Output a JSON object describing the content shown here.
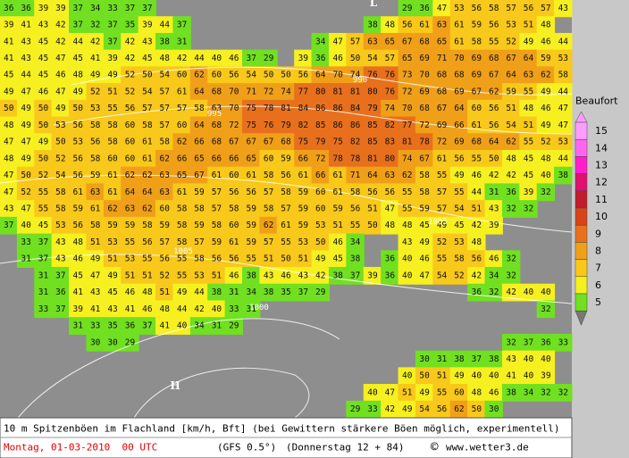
{
  "map": {
    "rows": [
      [
        36,
        36,
        39,
        39,
        37,
        34,
        33,
        37,
        37,
        null,
        null,
        null,
        null,
        null,
        null,
        null,
        null,
        null,
        null,
        null,
        null,
        null,
        null,
        29,
        36,
        47,
        53,
        56,
        58,
        57,
        56,
        57,
        43
      ],
      [
        39,
        41,
        43,
        42,
        37,
        32,
        37,
        35,
        39,
        44,
        37,
        null,
        null,
        null,
        null,
        null,
        null,
        null,
        null,
        null,
        null,
        38,
        48,
        56,
        61,
        63,
        61,
        59,
        56,
        53,
        51,
        48,
        null
      ],
      [
        41,
        43,
        45,
        42,
        44,
        42,
        37,
        42,
        43,
        38,
        31,
        null,
        null,
        null,
        null,
        null,
        null,
        null,
        34,
        47,
        57,
        63,
        65,
        67,
        68,
        65,
        61,
        58,
        55,
        52,
        49,
        46,
        44
      ],
      [
        41,
        43,
        45,
        47,
        45,
        41,
        39,
        42,
        45,
        48,
        42,
        44,
        40,
        46,
        37,
        29,
        null,
        39,
        36,
        46,
        50,
        54,
        57,
        65,
        69,
        71,
        70,
        69,
        68,
        67,
        64,
        59,
        53
      ],
      [
        45,
        44,
        45,
        46,
        48,
        49,
        49,
        52,
        50,
        54,
        60,
        62,
        60,
        56,
        54,
        50,
        50,
        56,
        64,
        70,
        74,
        76,
        76,
        73,
        70,
        68,
        68,
        69,
        67,
        64,
        63,
        62,
        58
      ],
      [
        49,
        47,
        46,
        47,
        49,
        52,
        51,
        52,
        54,
        57,
        61,
        64,
        68,
        70,
        71,
        72,
        74,
        77,
        80,
        81,
        81,
        80,
        76,
        72,
        69,
        68,
        69,
        67,
        62,
        59,
        55,
        49,
        44
      ],
      [
        50,
        49,
        50,
        49,
        50,
        53,
        55,
        56,
        57,
        57,
        57,
        58,
        63,
        70,
        75,
        78,
        81,
        84,
        86,
        86,
        84,
        79,
        74,
        70,
        68,
        67,
        64,
        60,
        56,
        51,
        48,
        46,
        47
      ],
      [
        48,
        49,
        50,
        53,
        56,
        58,
        58,
        60,
        58,
        57,
        60,
        64,
        68,
        72,
        75,
        76,
        79,
        82,
        85,
        86,
        86,
        85,
        82,
        77,
        72,
        69,
        66,
        61,
        56,
        54,
        51,
        49,
        47
      ],
      [
        47,
        47,
        49,
        50,
        53,
        56,
        58,
        60,
        61,
        58,
        62,
        66,
        68,
        67,
        67,
        67,
        68,
        75,
        79,
        75,
        82,
        85,
        83,
        81,
        78,
        72,
        69,
        68,
        64,
        62,
        55,
        52,
        53
      ],
      [
        48,
        49,
        50,
        52,
        56,
        58,
        60,
        60,
        61,
        62,
        66,
        65,
        66,
        66,
        65,
        60,
        59,
        66,
        72,
        78,
        78,
        81,
        80,
        74,
        67,
        61,
        56,
        55,
        50,
        48,
        45,
        48,
        44
      ],
      [
        47,
        50,
        52,
        54,
        56,
        59,
        61,
        62,
        62,
        63,
        65,
        67,
        61,
        60,
        61,
        58,
        56,
        61,
        66,
        61,
        71,
        64,
        63,
        62,
        58,
        55,
        49,
        46,
        42,
        42,
        45,
        40,
        38
      ],
      [
        47,
        52,
        55,
        58,
        61,
        63,
        61,
        64,
        64,
        63,
        61,
        59,
        57,
        56,
        56,
        57,
        58,
        59,
        60,
        61,
        58,
        56,
        56,
        55,
        58,
        57,
        55,
        44,
        31,
        36,
        39,
        32,
        null
      ],
      [
        43,
        47,
        55,
        58,
        59,
        61,
        62,
        63,
        62,
        60,
        58,
        58,
        57,
        58,
        59,
        58,
        57,
        59,
        60,
        59,
        56,
        51,
        47,
        55,
        59,
        57,
        54,
        51,
        43,
        32,
        32,
        null,
        null
      ],
      [
        37,
        40,
        45,
        53,
        56,
        58,
        59,
        59,
        58,
        59,
        58,
        59,
        58,
        60,
        59,
        62,
        61,
        59,
        53,
        51,
        55,
        50,
        48,
        48,
        45,
        49,
        45,
        42,
        39,
        null,
        null,
        null,
        null
      ],
      [
        null,
        33,
        37,
        43,
        48,
        51,
        53,
        55,
        56,
        57,
        58,
        57,
        59,
        61,
        59,
        57,
        55,
        53,
        50,
        46,
        34,
        null,
        null,
        43,
        49,
        52,
        53,
        48,
        null,
        null,
        null,
        null,
        null
      ],
      [
        null,
        31,
        37,
        43,
        46,
        49,
        51,
        53,
        55,
        56,
        55,
        58,
        56,
        56,
        55,
        51,
        50,
        51,
        49,
        45,
        38,
        null,
        36,
        40,
        46,
        55,
        58,
        56,
        46,
        32,
        null,
        null,
        null
      ],
      [
        null,
        null,
        31,
        37,
        45,
        47,
        49,
        51,
        51,
        52,
        55,
        53,
        51,
        46,
        38,
        43,
        46,
        43,
        42,
        38,
        37,
        39,
        36,
        40,
        47,
        54,
        52,
        42,
        34,
        32,
        null,
        null,
        null
      ],
      [
        null,
        null,
        31,
        36,
        41,
        43,
        45,
        46,
        48,
        51,
        49,
        44,
        38,
        31,
        34,
        38,
        35,
        37,
        29,
        null,
        null,
        null,
        null,
        null,
        null,
        null,
        null,
        36,
        32,
        42,
        40,
        40,
        null
      ],
      [
        null,
        null,
        33,
        37,
        39,
        41,
        43,
        41,
        46,
        48,
        44,
        42,
        40,
        33,
        31,
        null,
        null,
        null,
        null,
        null,
        null,
        null,
        null,
        null,
        null,
        null,
        null,
        null,
        null,
        null,
        null,
        32,
        null
      ],
      [
        null,
        null,
        null,
        null,
        31,
        33,
        35,
        36,
        37,
        41,
        40,
        34,
        31,
        29,
        null,
        null,
        null,
        null,
        null,
        null,
        null,
        null,
        null,
        null,
        null,
        null,
        null,
        null,
        null,
        null,
        null,
        null,
        null
      ],
      [
        null,
        null,
        null,
        null,
        null,
        30,
        30,
        29,
        null,
        null,
        null,
        null,
        null,
        null,
        null,
        null,
        null,
        null,
        null,
        null,
        null,
        null,
        null,
        null,
        null,
        null,
        null,
        null,
        null,
        32,
        37,
        36,
        33
      ],
      [
        null,
        null,
        null,
        null,
        null,
        null,
        null,
        null,
        null,
        null,
        null,
        null,
        null,
        null,
        null,
        null,
        null,
        null,
        null,
        null,
        null,
        null,
        null,
        null,
        30,
        31,
        38,
        37,
        38,
        43,
        40,
        40,
        null
      ],
      [
        null,
        null,
        null,
        null,
        null,
        null,
        null,
        null,
        null,
        null,
        null,
        null,
        null,
        null,
        null,
        null,
        null,
        null,
        null,
        null,
        null,
        null,
        null,
        40,
        50,
        51,
        49,
        40,
        40,
        41,
        40,
        39,
        null
      ],
      [
        null,
        null,
        null,
        null,
        null,
        null,
        null,
        null,
        null,
        null,
        null,
        null,
        null,
        null,
        null,
        null,
        null,
        null,
        null,
        null,
        null,
        40,
        47,
        51,
        49,
        55,
        60,
        48,
        46,
        38,
        34,
        32,
        32
      ],
      [
        null,
        null,
        null,
        null,
        null,
        null,
        null,
        null,
        null,
        null,
        null,
        null,
        null,
        null,
        null,
        null,
        null,
        null,
        null,
        null,
        29,
        33,
        42,
        49,
        54,
        56,
        62,
        50,
        30,
        null,
        null,
        null,
        null
      ]
    ],
    "isobar_labels": [
      "990",
      "995",
      "1005",
      "1005",
      "1000"
    ],
    "pressure_centers": [
      "H",
      "L"
    ],
    "legend": {
      "title": "Beaufort",
      "items": [
        {
          "label": "15",
          "color": "#ff9cff"
        },
        {
          "label": "14",
          "color": "#ff66ee"
        },
        {
          "label": "13",
          "color": "#ff1ec8"
        },
        {
          "label": "12",
          "color": "#e0106e"
        },
        {
          "label": "11",
          "color": "#c01c2c"
        },
        {
          "label": "10",
          "color": "#d8441a"
        },
        {
          "label": "9",
          "color": "#e8701c"
        },
        {
          "label": "8",
          "color": "#f0a018"
        },
        {
          "label": "7",
          "color": "#f8c81a"
        },
        {
          "label": "6",
          "color": "#f6f020"
        },
        {
          "label": "5",
          "color": "#70e020"
        }
      ]
    },
    "footer": {
      "description": "10 m Spitzenböen im Flachland [km/h, Bft] (bei Gewittern stärkere Böen möglich, experimentell)",
      "date": "Montag, 01-03-2010  00 UTC",
      "model": "(GFS 0.5°)",
      "forecast": "(Donnerstag 12 + 84)",
      "copyright": "©",
      "site": "www.wetter3.de"
    }
  }
}
